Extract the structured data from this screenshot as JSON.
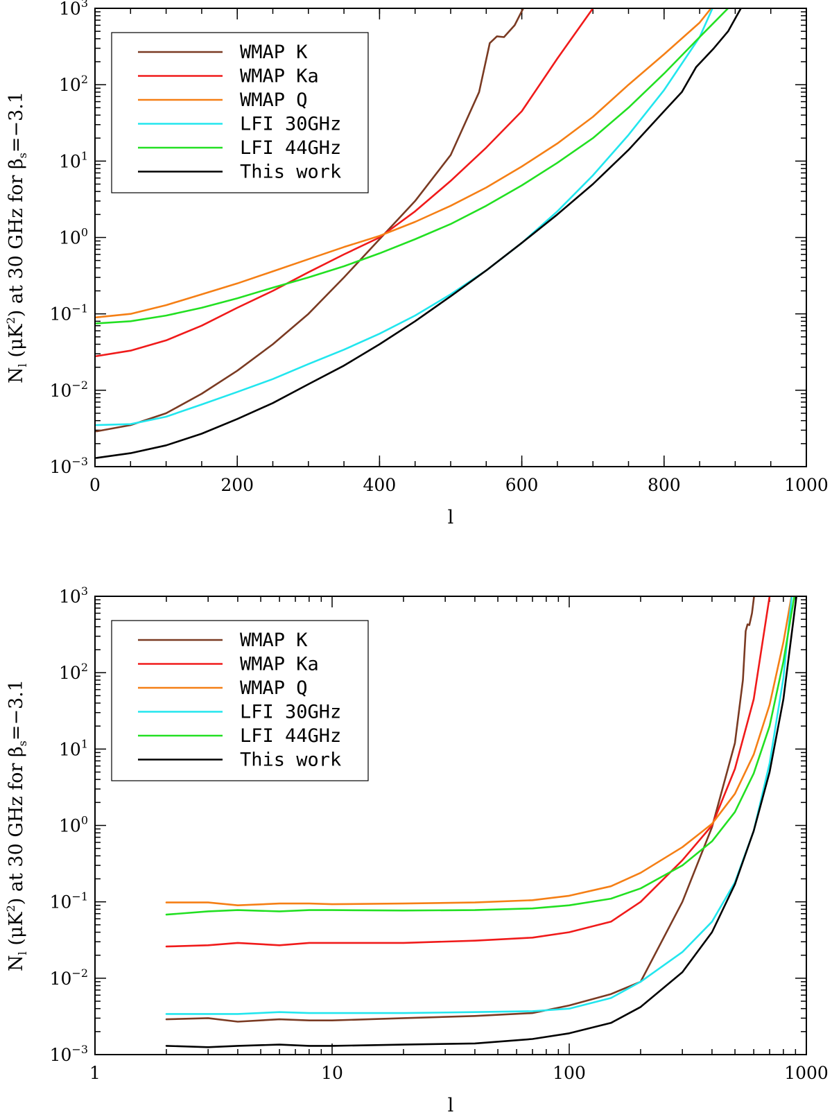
{
  "colors": {
    "wmap_k": "#7a3a22",
    "wmap_ka": "#f01a1a",
    "wmap_q": "#f57f15",
    "lfi_30": "#22e6ee",
    "lfi_44": "#22e022",
    "this_work": "#000000"
  },
  "chart_data": [
    {
      "type": "line",
      "xscale": "linear",
      "yscale": "log",
      "xlim": [
        0,
        1000
      ],
      "ylim": [
        0.001,
        1000
      ],
      "xlabel": "l",
      "ylabel": {
        "main": "N",
        "sub": "l",
        "unit_open": "(μK",
        "unit_sup": "2",
        "unit_close": ") at 30 GHz for β",
        "beta_sub": "s",
        "value": "=−3.1"
      },
      "xticks": [
        {
          "value": 0,
          "label": "0"
        },
        {
          "value": 200,
          "label": "200"
        },
        {
          "value": 400,
          "label": "400"
        },
        {
          "value": 600,
          "label": "600"
        },
        {
          "value": 800,
          "label": "800"
        },
        {
          "value": 1000,
          "label": "1000"
        }
      ],
      "yticks": [
        {
          "value": 0.001,
          "base": "10",
          "exp": "−3"
        },
        {
          "value": 0.01,
          "base": "10",
          "exp": "−2"
        },
        {
          "value": 0.1,
          "base": "10",
          "exp": "−1"
        },
        {
          "value": 1,
          "base": "10",
          "exp": "0"
        },
        {
          "value": 10,
          "base": "10",
          "exp": "1"
        },
        {
          "value": 100,
          "base": "10",
          "exp": "2"
        },
        {
          "value": 1000,
          "base": "10",
          "exp": "3"
        }
      ],
      "legend_position": "top-left",
      "series": [
        {
          "name": "WMAP K",
          "color_key": "wmap_k",
          "x": [
            2,
            50,
            100,
            150,
            200,
            250,
            300,
            350,
            400,
            450,
            500,
            540,
            555,
            565,
            575,
            590,
            602
          ],
          "y": [
            0.0029,
            0.0035,
            0.005,
            0.009,
            0.018,
            0.04,
            0.1,
            0.3,
            0.95,
            3.0,
            12,
            80,
            350,
            430,
            420,
            600,
            1000
          ]
        },
        {
          "name": "WMAP Ka",
          "color_key": "wmap_ka",
          "x": [
            2,
            50,
            100,
            150,
            200,
            250,
            300,
            350,
            400,
            450,
            500,
            550,
            600,
            650,
            700
          ],
          "y": [
            0.028,
            0.033,
            0.045,
            0.07,
            0.12,
            0.2,
            0.35,
            0.6,
            1.0,
            2.2,
            5.5,
            15,
            45,
            220,
            1000
          ]
        },
        {
          "name": "WMAP Q",
          "color_key": "wmap_q",
          "x": [
            2,
            50,
            100,
            150,
            200,
            250,
            300,
            350,
            400,
            450,
            500,
            550,
            600,
            650,
            700,
            750,
            800,
            850,
            866
          ],
          "y": [
            0.09,
            0.1,
            0.13,
            0.18,
            0.25,
            0.36,
            0.52,
            0.75,
            1.05,
            1.6,
            2.6,
            4.5,
            8.5,
            17,
            38,
            100,
            250,
            650,
            1000
          ]
        },
        {
          "name": "LFI 30GHz",
          "color_key": "lfi_30",
          "x": [
            2,
            50,
            100,
            150,
            200,
            250,
            300,
            350,
            400,
            450,
            500,
            550,
            600,
            650,
            700,
            750,
            800,
            850,
            868
          ],
          "y": [
            0.0035,
            0.0036,
            0.0045,
            0.0065,
            0.0095,
            0.014,
            0.022,
            0.034,
            0.055,
            0.095,
            0.18,
            0.37,
            0.85,
            2.2,
            6.5,
            22,
            85,
            420,
            1000
          ]
        },
        {
          "name": "LFI 44GHz",
          "color_key": "lfi_44",
          "x": [
            2,
            50,
            100,
            150,
            200,
            250,
            300,
            350,
            400,
            450,
            500,
            550,
            600,
            650,
            700,
            750,
            800,
            850,
            890
          ],
          "y": [
            0.075,
            0.08,
            0.095,
            0.12,
            0.16,
            0.22,
            0.3,
            0.42,
            0.62,
            0.95,
            1.5,
            2.6,
            4.8,
            9.5,
            20,
            50,
            140,
            420,
            1000
          ]
        },
        {
          "name": "This work",
          "color_key": "this_work",
          "x": [
            2,
            50,
            100,
            150,
            200,
            250,
            300,
            350,
            400,
            450,
            500,
            550,
            600,
            650,
            700,
            750,
            800,
            825,
            845,
            870,
            890,
            908
          ],
          "y": [
            0.0013,
            0.0015,
            0.0019,
            0.0027,
            0.0042,
            0.0068,
            0.012,
            0.021,
            0.04,
            0.08,
            0.17,
            0.37,
            0.85,
            2.0,
            5.0,
            14,
            45,
            80,
            170,
            300,
            500,
            1000
          ]
        }
      ]
    },
    {
      "type": "line",
      "xscale": "log",
      "yscale": "log",
      "xlim": [
        1,
        1000
      ],
      "ylim": [
        0.001,
        1000
      ],
      "xlabel": "l",
      "ylabel": {
        "main": "N",
        "sub": "l",
        "unit_open": "(μK",
        "unit_sup": "2",
        "unit_close": ") at 30 GHz for β",
        "beta_sub": "s",
        "value": "=−3.1"
      },
      "xticks": [
        {
          "value": 1,
          "label": "1"
        },
        {
          "value": 10,
          "label": "10"
        },
        {
          "value": 100,
          "label": "100"
        },
        {
          "value": 1000,
          "label": "1000"
        }
      ],
      "yticks": [
        {
          "value": 0.001,
          "base": "10",
          "exp": "−3"
        },
        {
          "value": 0.01,
          "base": "10",
          "exp": "−2"
        },
        {
          "value": 0.1,
          "base": "10",
          "exp": "−1"
        },
        {
          "value": 1,
          "base": "10",
          "exp": "0"
        },
        {
          "value": 10,
          "base": "10",
          "exp": "1"
        },
        {
          "value": 100,
          "base": "10",
          "exp": "2"
        },
        {
          "value": 1000,
          "base": "10",
          "exp": "3"
        }
      ],
      "legend_position": "top-left",
      "series": [
        {
          "name": "WMAP K",
          "color_key": "wmap_k",
          "x": [
            2,
            3,
            4,
            6,
            8,
            10,
            20,
            40,
            70,
            100,
            150,
            200,
            300,
            400,
            500,
            540,
            555,
            565,
            575,
            590,
            602
          ],
          "y": [
            0.0029,
            0.003,
            0.0027,
            0.0029,
            0.0028,
            0.0028,
            0.003,
            0.0032,
            0.0035,
            0.0044,
            0.0062,
            0.009,
            0.1,
            0.95,
            12,
            80,
            350,
            430,
            420,
            600,
            1000
          ]
        },
        {
          "name": "WMAP Ka",
          "color_key": "wmap_ka",
          "x": [
            2,
            3,
            4,
            6,
            8,
            10,
            20,
            40,
            70,
            100,
            150,
            200,
            300,
            400,
            500,
            600,
            700
          ],
          "y": [
            0.026,
            0.027,
            0.029,
            0.027,
            0.029,
            0.029,
            0.029,
            0.031,
            0.034,
            0.04,
            0.055,
            0.1,
            0.35,
            1.0,
            5.5,
            45,
            1000
          ]
        },
        {
          "name": "WMAP Q",
          "color_key": "wmap_q",
          "x": [
            2,
            3,
            4,
            6,
            8,
            10,
            20,
            40,
            70,
            100,
            150,
            200,
            300,
            400,
            500,
            600,
            700,
            800,
            866
          ],
          "y": [
            0.098,
            0.098,
            0.09,
            0.095,
            0.095,
            0.093,
            0.095,
            0.098,
            0.105,
            0.12,
            0.16,
            0.24,
            0.52,
            1.05,
            2.6,
            8.5,
            38,
            250,
            1000
          ]
        },
        {
          "name": "LFI 30GHz",
          "color_key": "lfi_30",
          "x": [
            2,
            3,
            4,
            6,
            8,
            10,
            20,
            40,
            70,
            100,
            150,
            200,
            300,
            400,
            500,
            600,
            700,
            800,
            868
          ],
          "y": [
            0.0034,
            0.0034,
            0.0034,
            0.0036,
            0.0035,
            0.0035,
            0.0035,
            0.0036,
            0.0037,
            0.004,
            0.0055,
            0.009,
            0.022,
            0.055,
            0.18,
            0.85,
            6.5,
            85,
            1000
          ]
        },
        {
          "name": "LFI 44GHz",
          "color_key": "lfi_44",
          "x": [
            2,
            3,
            4,
            6,
            8,
            10,
            20,
            40,
            70,
            100,
            150,
            200,
            300,
            400,
            500,
            600,
            700,
            800,
            890
          ],
          "y": [
            0.068,
            0.075,
            0.078,
            0.075,
            0.078,
            0.078,
            0.077,
            0.078,
            0.082,
            0.09,
            0.11,
            0.15,
            0.3,
            0.62,
            1.5,
            4.8,
            20,
            140,
            1000
          ]
        },
        {
          "name": "This work",
          "color_key": "this_work",
          "x": [
            2,
            3,
            4,
            6,
            8,
            10,
            20,
            40,
            70,
            100,
            150,
            200,
            300,
            400,
            500,
            600,
            700,
            800,
            908
          ],
          "y": [
            0.0013,
            0.00125,
            0.0013,
            0.00135,
            0.0013,
            0.0013,
            0.00135,
            0.0014,
            0.0016,
            0.0019,
            0.0026,
            0.0042,
            0.012,
            0.04,
            0.17,
            0.85,
            5.0,
            45,
            1000
          ]
        }
      ]
    }
  ]
}
